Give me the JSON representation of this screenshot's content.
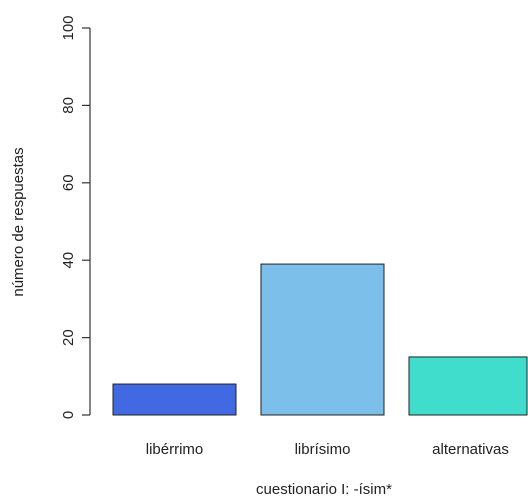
{
  "chart_data": {
    "type": "bar",
    "categories": [
      "libérrimo",
      "librísimo",
      "alternativas"
    ],
    "values": [
      8,
      39,
      15
    ],
    "colors": [
      "#4169E1",
      "#7BBFEA",
      "#40DCCC"
    ],
    "xlabel": "cuestionario I: -ísim*",
    "ylabel": "número de respuestas",
    "ylim": [
      0,
      100
    ],
    "yticks": [
      0,
      20,
      40,
      60,
      80,
      100
    ],
    "grid": false,
    "legend": "none"
  }
}
